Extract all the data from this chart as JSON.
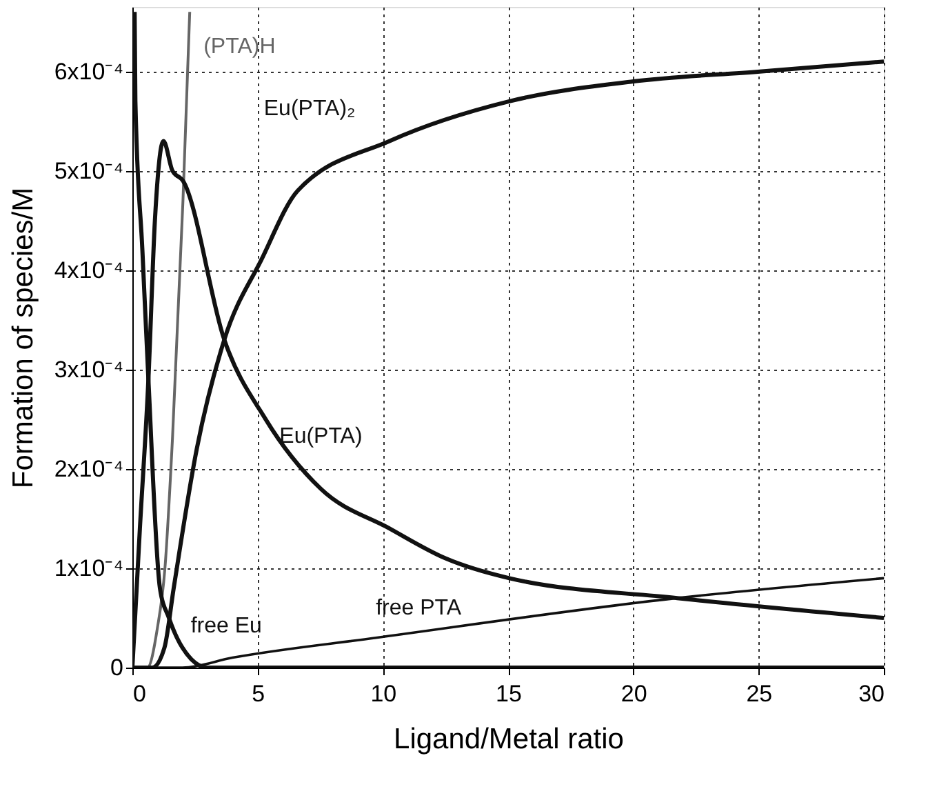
{
  "chart_data": {
    "type": "line",
    "xlabel": "Ligand/Metal ratio",
    "ylabel": "Formation of species/M",
    "xlim": [
      0,
      30
    ],
    "xticks": [
      0,
      5,
      10,
      15,
      20,
      25,
      30
    ],
    "ylim": [
      0,
      0.000665
    ],
    "yticks": [
      0,
      {
        "value": 0.0001,
        "label": "1x10⁻⁴"
      },
      {
        "value": 0.0002,
        "label": "2x10⁻⁴"
      },
      {
        "value": 0.0003,
        "label": "3x10⁻⁴"
      },
      {
        "value": 0.0004,
        "label": "4x10⁻⁴"
      },
      {
        "value": 0.0005,
        "label": "5x10⁻⁴"
      },
      {
        "value": 0.0006,
        "label": "6x10⁻⁴"
      }
    ],
    "grid": true,
    "marker": "none",
    "line_style": "solid",
    "series": [
      {
        "name": "(PTA)H",
        "color": "#666666",
        "x": [
          0,
          0.6,
          1.0,
          1.3,
          1.6,
          2.02,
          2.29
        ],
        "values": [
          0,
          0,
          4e-05,
          0.0001,
          0.00023,
          0.00047,
          0.00066
        ]
      },
      {
        "name": "Eu(PTA)₂",
        "color": "#111111",
        "x": [
          0,
          0.8,
          1.28,
          1.65,
          2.57,
          3.67,
          5.14,
          6.6,
          10.27,
          15.05,
          20,
          25.05,
          30
        ],
        "values": [
          0,
          0,
          2e-05,
          8e-05,
          0.00022,
          0.00033,
          0.00041,
          0.00048,
          0.00053,
          0.00057,
          0.00059,
          0.0006,
          0.00061
        ]
      },
      {
        "name": "Eu(PTA)",
        "color": "#111111",
        "x": [
          0,
          0.3,
          0.64,
          0.9,
          1.24,
          1.6,
          2.02,
          3.67,
          5.32,
          7.52,
          10.27,
          12.5,
          15.05,
          21.75,
          30
        ],
        "values": [
          0,
          0.00014,
          0.00029,
          0.00045,
          0.00053,
          0.0005,
          0.00049,
          0.00033,
          0.00025,
          0.00018,
          0.00014,
          0.00011,
          9e-05,
          7e-05,
          5e-05
        ]
      },
      {
        "name": "free Eu",
        "color": "#111111",
        "x": [
          0.09,
          0.12,
          0.4,
          0.64,
          1.1,
          1.46,
          2.0,
          3,
          5,
          10,
          30
        ],
        "values": [
          0.00066,
          0.00057,
          0.00042,
          0.00029,
          8e-05,
          5e-05,
          2e-05,
          0,
          0,
          0,
          0
        ]
      },
      {
        "name": "free PTA",
        "color": "#111111",
        "x": [
          0,
          2,
          4,
          9.72,
          21.75,
          30
        ],
        "values": [
          0,
          0,
          1e-05,
          3e-05,
          7e-05,
          9e-05
        ]
      }
    ]
  }
}
